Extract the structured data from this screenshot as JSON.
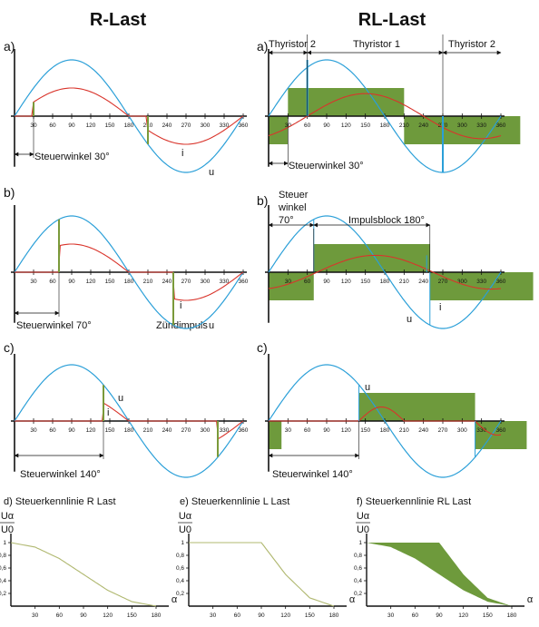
{
  "colors": {
    "voltage": "#2a9fd8",
    "current": "#d9342b",
    "block": "#6e9a3c",
    "marker": "#7a9a3a",
    "axis": "#111111",
    "kennlinie": "#b0b870"
  },
  "headers": {
    "r_last": "R-Last",
    "rl_last": "RL-Last"
  },
  "ticks": [
    "30",
    "60",
    "90",
    "120",
    "150",
    "180",
    "210",
    "240",
    "270",
    "300",
    "330",
    "360"
  ],
  "r_panels": [
    {
      "letter": "a)",
      "alpha": 30,
      "label": "Steuerwinkel 30°",
      "i": "i",
      "u": "u"
    },
    {
      "letter": "b)",
      "alpha": 70,
      "label": "Steuerwinkel 70°",
      "zuend": "Zündimpuls",
      "i": "i",
      "u": "u"
    },
    {
      "letter": "c)",
      "alpha": 140,
      "label": "Steuerwinkel 140°",
      "i": "i",
      "u": "u"
    }
  ],
  "rl_panels": [
    {
      "letter": "a)",
      "alpha": 30,
      "label": "Steuerwinkel 30°",
      "thyristor2a": "Thyristor 2",
      "thyristor1": "Thyristor 1",
      "thyristor2b": "Thyristor 2"
    },
    {
      "letter": "b)",
      "alpha": 70,
      "label_line1": "Steuer",
      "label_line2": "winkel",
      "label_line3": "70°",
      "impulsblock": "Impulsblock 180°",
      "u": "u",
      "i": "i"
    },
    {
      "letter": "c)",
      "alpha": 140,
      "label": "Steuerwinkel 140°",
      "u": "u",
      "i": "i"
    }
  ],
  "bottom": {
    "d_title": "d)   Steuerkennlinie R Last",
    "e_title": "e)   Steuerkennlinie L Last",
    "f_title": "f)   Steuerkennlinie RL Last",
    "ylabel_num": "Uα",
    "ylabel_den": "U0",
    "xlabel": "α",
    "yticks": [
      "0,2",
      "0,4",
      "0,6",
      "0,8",
      "1"
    ],
    "xticks": [
      "30",
      "60",
      "90",
      "120",
      "150",
      "180"
    ]
  },
  "chart_data": [
    {
      "type": "line",
      "title": "Steuerkennlinie R Last",
      "xlabel": "α",
      "ylabel": "Uα/U0",
      "xlim": [
        0,
        180
      ],
      "ylim": [
        0,
        1
      ],
      "series": [
        {
          "x": [
            0,
            30,
            60,
            90,
            120,
            150,
            180
          ],
          "values": [
            1,
            0.93,
            0.75,
            0.5,
            0.25,
            0.07,
            0
          ]
        }
      ]
    },
    {
      "type": "line",
      "title": "Steuerkennlinie L Last",
      "xlabel": "α",
      "ylabel": "Uα/U0",
      "xlim": [
        0,
        180
      ],
      "ylim": [
        0,
        1
      ],
      "series": [
        {
          "x": [
            0,
            30,
            60,
            90,
            120,
            150,
            180
          ],
          "values": [
            1,
            1,
            1,
            1,
            0.5,
            0.13,
            0
          ]
        }
      ]
    },
    {
      "type": "area",
      "title": "Steuerkennlinie RL Last",
      "xlabel": "α",
      "ylabel": "Uα/U0",
      "xlim": [
        0,
        180
      ],
      "ylim": [
        0,
        1
      ],
      "series": [
        {
          "x": [
            0,
            30,
            60,
            90,
            120,
            150,
            180
          ],
          "values": [
            1,
            1,
            1,
            1,
            0.5,
            0.13,
            0
          ]
        },
        {
          "x": [
            0,
            30,
            60,
            90,
            120,
            150,
            180
          ],
          "values": [
            1,
            0.93,
            0.75,
            0.5,
            0.25,
            0.07,
            0
          ]
        }
      ]
    }
  ]
}
